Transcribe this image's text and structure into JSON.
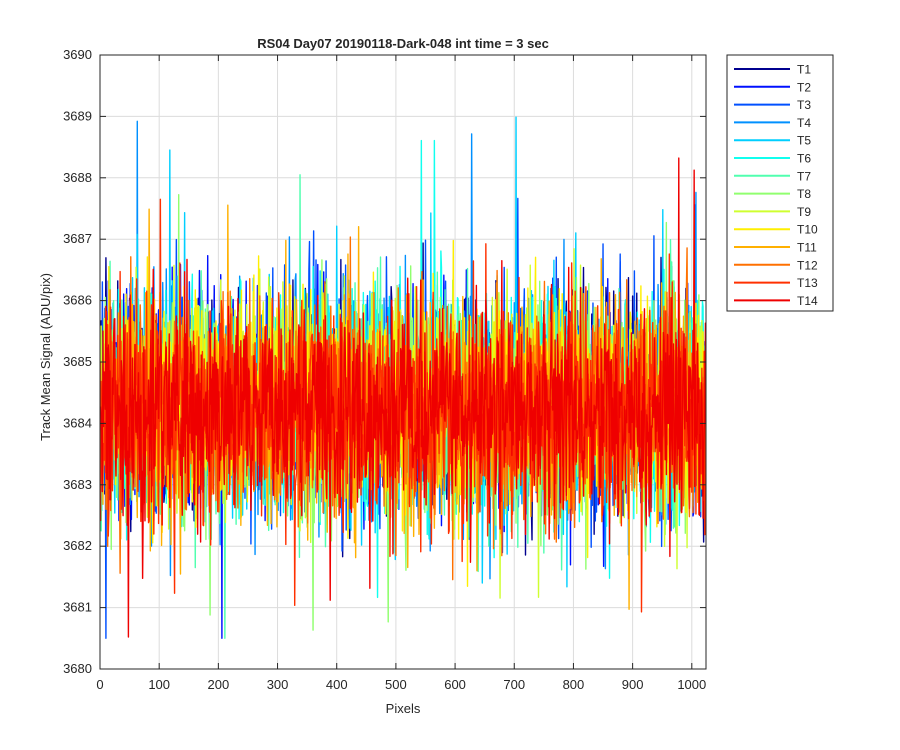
{
  "chart_data": {
    "type": "line",
    "title": "RS04 Day07 20190118-Dark-048 int time = 3 sec",
    "xlabel": "Pixels",
    "ylabel": "Track Mean Signal (ADU/pix)",
    "xlim": [
      0,
      1024
    ],
    "ylim": [
      3680,
      3690
    ],
    "xticks": [
      0,
      100,
      200,
      300,
      400,
      500,
      600,
      700,
      800,
      900,
      1000
    ],
    "yticks": [
      3680,
      3681,
      3682,
      3683,
      3684,
      3685,
      3686,
      3687,
      3688,
      3689,
      3690
    ],
    "grid": true,
    "legend_position": "outside-top-right",
    "series_summary": {
      "n_points_per_series": 1024,
      "typical_center": 3684.2,
      "typical_band": [
        3682.5,
        3686.0
      ],
      "observed_min": 3680.5,
      "observed_max": 3689.2
    },
    "series": [
      {
        "name": "T1",
        "color": "#00008f",
        "mean": 3684.3,
        "std": 0.85
      },
      {
        "name": "T2",
        "color": "#0010ff",
        "mean": 3684.3,
        "std": 0.85
      },
      {
        "name": "T3",
        "color": "#0050ff",
        "mean": 3684.3,
        "std": 0.85
      },
      {
        "name": "T4",
        "color": "#0090ff",
        "mean": 3684.3,
        "std": 0.85
      },
      {
        "name": "T5",
        "color": "#00cfff",
        "mean": 3684.3,
        "std": 0.85
      },
      {
        "name": "T6",
        "color": "#10ffef",
        "mean": 3684.3,
        "std": 0.85
      },
      {
        "name": "T7",
        "color": "#50ffaf",
        "mean": 3684.3,
        "std": 0.85
      },
      {
        "name": "T8",
        "color": "#90ff6f",
        "mean": 3684.3,
        "std": 0.85
      },
      {
        "name": "T9",
        "color": "#cfff30",
        "mean": 3684.3,
        "std": 0.85
      },
      {
        "name": "T10",
        "color": "#ffef00",
        "mean": 3684.3,
        "std": 0.85
      },
      {
        "name": "T11",
        "color": "#ffb000",
        "mean": 3684.2,
        "std": 0.85
      },
      {
        "name": "T12",
        "color": "#ff7000",
        "mean": 3684.2,
        "std": 0.85
      },
      {
        "name": "T13",
        "color": "#ff3000",
        "mean": 3684.2,
        "std": 0.85
      },
      {
        "name": "T14",
        "color": "#ef0000",
        "mean": 3684.2,
        "std": 0.85
      }
    ]
  }
}
